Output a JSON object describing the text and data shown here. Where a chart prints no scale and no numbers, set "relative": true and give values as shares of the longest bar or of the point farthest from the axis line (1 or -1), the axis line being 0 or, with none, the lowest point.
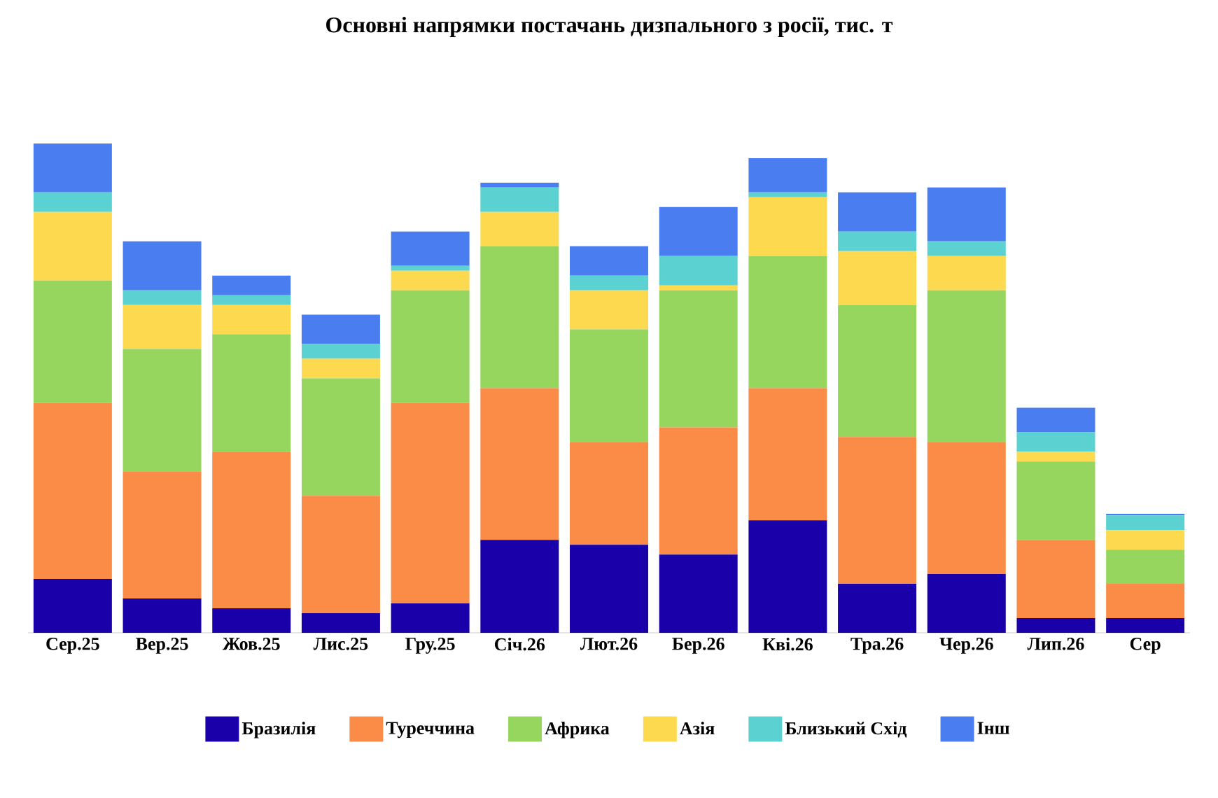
{
  "chart_data": {
    "type": "bar",
    "title": "Основні напрямки постачань дизпального з росії, тис. т",
    "relative": true,
    "stacked": true,
    "legend": "bottom",
    "categories": [
      "Сер.25",
      "Вер.25",
      "Жов.25",
      "Лис.25",
      "Гру.25",
      "Січ.26",
      "Лют.26",
      "Бер.26",
      "Кві.26",
      "Тра.26",
      "Чер.26",
      "Лип.26",
      "Сер"
    ],
    "series": [
      {
        "name": "Бразилія",
        "color": "#1a00a8",
        "values": [
          0.11,
          0.07,
          0.05,
          0.04,
          0.06,
          0.19,
          0.18,
          0.16,
          0.23,
          0.1,
          0.12,
          0.03,
          0.03
        ]
      },
      {
        "name": "Туреччина",
        "color": "#fb8c47",
        "values": [
          0.36,
          0.26,
          0.32,
          0.24,
          0.41,
          0.31,
          0.21,
          0.26,
          0.27,
          0.3,
          0.27,
          0.16,
          0.07
        ]
      },
      {
        "name": "Африка",
        "color": "#96d65e",
        "values": [
          0.25,
          0.25,
          0.24,
          0.24,
          0.23,
          0.29,
          0.23,
          0.28,
          0.27,
          0.27,
          0.31,
          0.16,
          0.07
        ]
      },
      {
        "name": "Азія",
        "color": "#fdd94f",
        "values": [
          0.14,
          0.09,
          0.06,
          0.04,
          0.04,
          0.07,
          0.08,
          0.01,
          0.12,
          0.11,
          0.07,
          0.02,
          0.04
        ]
      },
      {
        "name": "Близький Схід",
        "color": "#5bd1d1",
        "values": [
          0.04,
          0.03,
          0.02,
          0.03,
          0.01,
          0.05,
          0.03,
          0.06,
          0.01,
          0.04,
          0.03,
          0.04,
          0.03
        ]
      },
      {
        "name": "Інш",
        "color": "#4a7ef0",
        "values": [
          0.1,
          0.1,
          0.04,
          0.06,
          0.07,
          0.01,
          0.06,
          0.1,
          0.07,
          0.08,
          0.11,
          0.05,
          0.003
        ]
      }
    ]
  }
}
